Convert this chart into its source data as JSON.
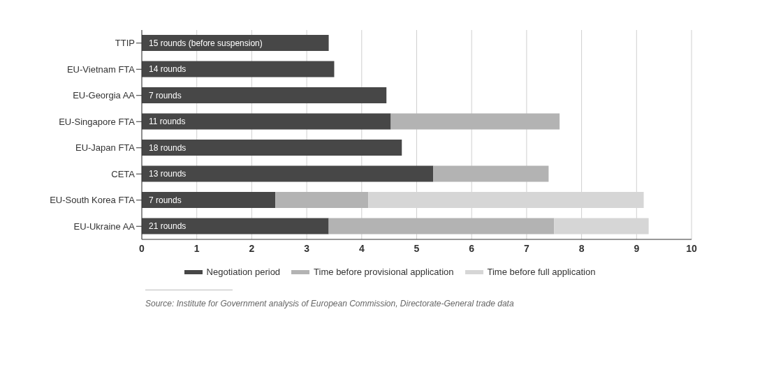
{
  "chart_data": {
    "type": "bar",
    "orientation": "horizontal",
    "stacked": true,
    "categories": [
      "TTIP",
      "EU-Vietnam FTA",
      "EU-Georgia AA",
      "EU-Singapore FTA",
      "EU-Japan FTA",
      "CETA",
      "EU-South Korea FTA",
      "EU-Ukraine AA"
    ],
    "series": [
      {
        "name": "Negotiation period",
        "color": "#474747",
        "values": [
          3.4,
          3.5,
          4.45,
          4.53,
          4.73,
          5.3,
          2.43,
          3.4
        ]
      },
      {
        "name": "Time before provisional application",
        "color": "#b3b3b3",
        "values": [
          null,
          null,
          null,
          3.07,
          null,
          2.1,
          1.69,
          4.1
        ]
      },
      {
        "name": "Time before full application",
        "color": "#d6d6d6",
        "values": [
          null,
          null,
          null,
          null,
          null,
          null,
          5.01,
          1.72
        ]
      }
    ],
    "xlim": [
      0,
      10
    ],
    "xticks": [
      0,
      1,
      2,
      3,
      4,
      5,
      6,
      7,
      8,
      9,
      10
    ],
    "grid": "x",
    "legend": "bottom",
    "annotations": [
      {
        "text": "15 rounds (before suspension)",
        "y": "TTIP"
      },
      {
        "text": "14 rounds",
        "y": "EU-Vietnam FTA"
      },
      {
        "text": "7 rounds",
        "y": "EU-Georgia AA"
      },
      {
        "text": "11 rounds",
        "y": "EU-Singapore FTA"
      },
      {
        "text": "18 rounds",
        "y": "EU-Japan FTA"
      },
      {
        "text": "13 rounds",
        "y": "CETA"
      },
      {
        "text": "7 rounds",
        "y": "EU-South Korea FTA"
      },
      {
        "text": "21 rounds",
        "y": "EU-Ukraine AA"
      },
      "Source: Institute for Government analysis of European Commission, Directorate-General trade data"
    ]
  }
}
